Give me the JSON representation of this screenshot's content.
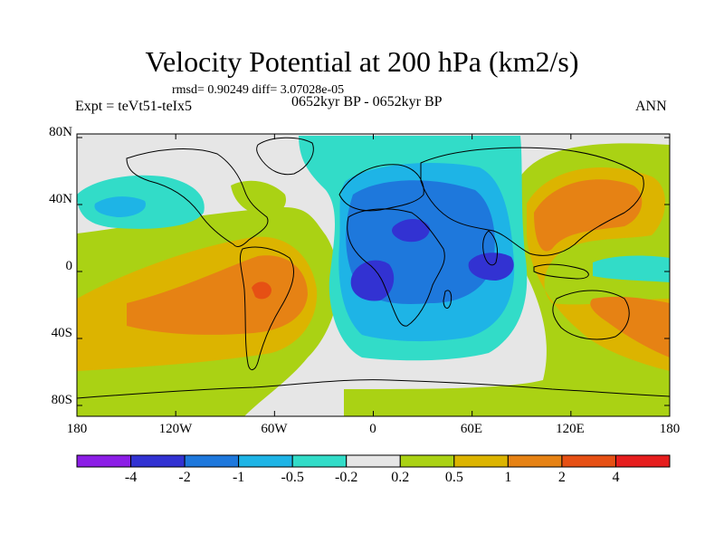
{
  "title": "Velocity Potential at 200 hPa (km2/s)",
  "stats": "rmsd= 0.90249 diff= 3.07028e-05",
  "expt": "Expt = teVt51-teIx5",
  "period": "0652kyr BP - 0652kyr BP",
  "season": "ANN",
  "lat_ticks": [
    "80N",
    "40N",
    "0",
    "40S",
    "80S"
  ],
  "lon_ticks": [
    "180",
    "120W",
    "60W",
    "0",
    "60E",
    "120E",
    "180"
  ],
  "colorbar": {
    "colors": [
      "#8c1ee6",
      "#3232d2",
      "#1e78dc",
      "#1eb4e6",
      "#32dcc8",
      "#e6e6e6",
      "#aad214",
      "#dcb400",
      "#e68214",
      "#e65014",
      "#e61e1e"
    ],
    "labels": [
      "-4",
      "-2",
      "-1",
      "-0.5",
      "-0.2",
      "0.2",
      "0.5",
      "1",
      "2",
      "4"
    ]
  },
  "palette": {
    "ocean_bg": "#e6e6e6",
    "green": "#aad214",
    "gold": "#dcb400",
    "orange": "#e68214",
    "red": "#e65014",
    "cyan": "#32dcc8",
    "lightblue": "#1eb4e6",
    "blue": "#1e78dc",
    "darkblue": "#3232d2"
  }
}
